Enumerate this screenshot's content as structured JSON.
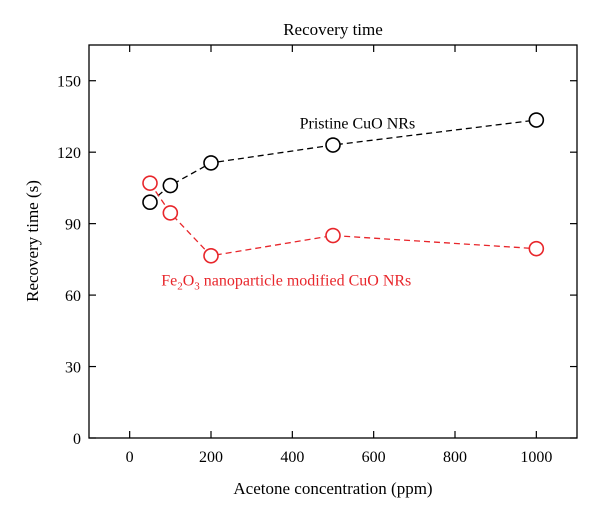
{
  "chart_data": {
    "type": "line",
    "title": "Recovery time",
    "xlabel": "Acetone concentration (ppm)",
    "ylabel": "Recovery time (s)",
    "xlim": [
      -100,
      1100
    ],
    "ylim": [
      0,
      165
    ],
    "xticks": [
      0,
      200,
      400,
      600,
      800,
      1000
    ],
    "yticks": [
      0,
      30,
      60,
      90,
      120,
      150
    ],
    "grid": false,
    "series": [
      {
        "name": "Pristine CuO NRs",
        "color": "#000000",
        "x": [
          50,
          100,
          200,
          500,
          1000
        ],
        "y": [
          99,
          106,
          115.5,
          123,
          133.5
        ]
      },
      {
        "name": "Fe2O3 nanoparticle modified CuO NRs",
        "color": "#e8262b",
        "x": [
          50,
          100,
          200,
          500,
          1000
        ],
        "y": [
          107,
          94.5,
          76.5,
          85,
          79.5
        ]
      }
    ],
    "annotations": [
      {
        "series": 0,
        "text_parts": [
          "Pristine CuO NRs"
        ],
        "x": 560,
        "y": 130
      },
      {
        "series": 1,
        "text_parts": [
          "Fe",
          "2",
          "O",
          "3",
          " nanoparticle modified CuO NRs"
        ],
        "x": 385,
        "y": 64
      }
    ]
  }
}
